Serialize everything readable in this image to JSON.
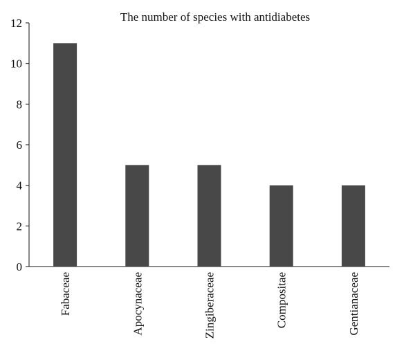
{
  "chart_data": {
    "type": "bar",
    "title": "The number of species with antidiabetes",
    "xlabel": "",
    "ylabel": "",
    "categories": [
      "Fabaceae",
      "Apocynaceae",
      "Zingiberaceae",
      "Compositae",
      "Gentianaceae"
    ],
    "values": [
      11,
      5,
      5,
      4,
      4
    ],
    "ylim": [
      0,
      12
    ],
    "yticks": [
      0,
      2,
      4,
      6,
      8,
      10,
      12
    ],
    "grid": false,
    "legend": "none",
    "bar_color": "#484848"
  }
}
